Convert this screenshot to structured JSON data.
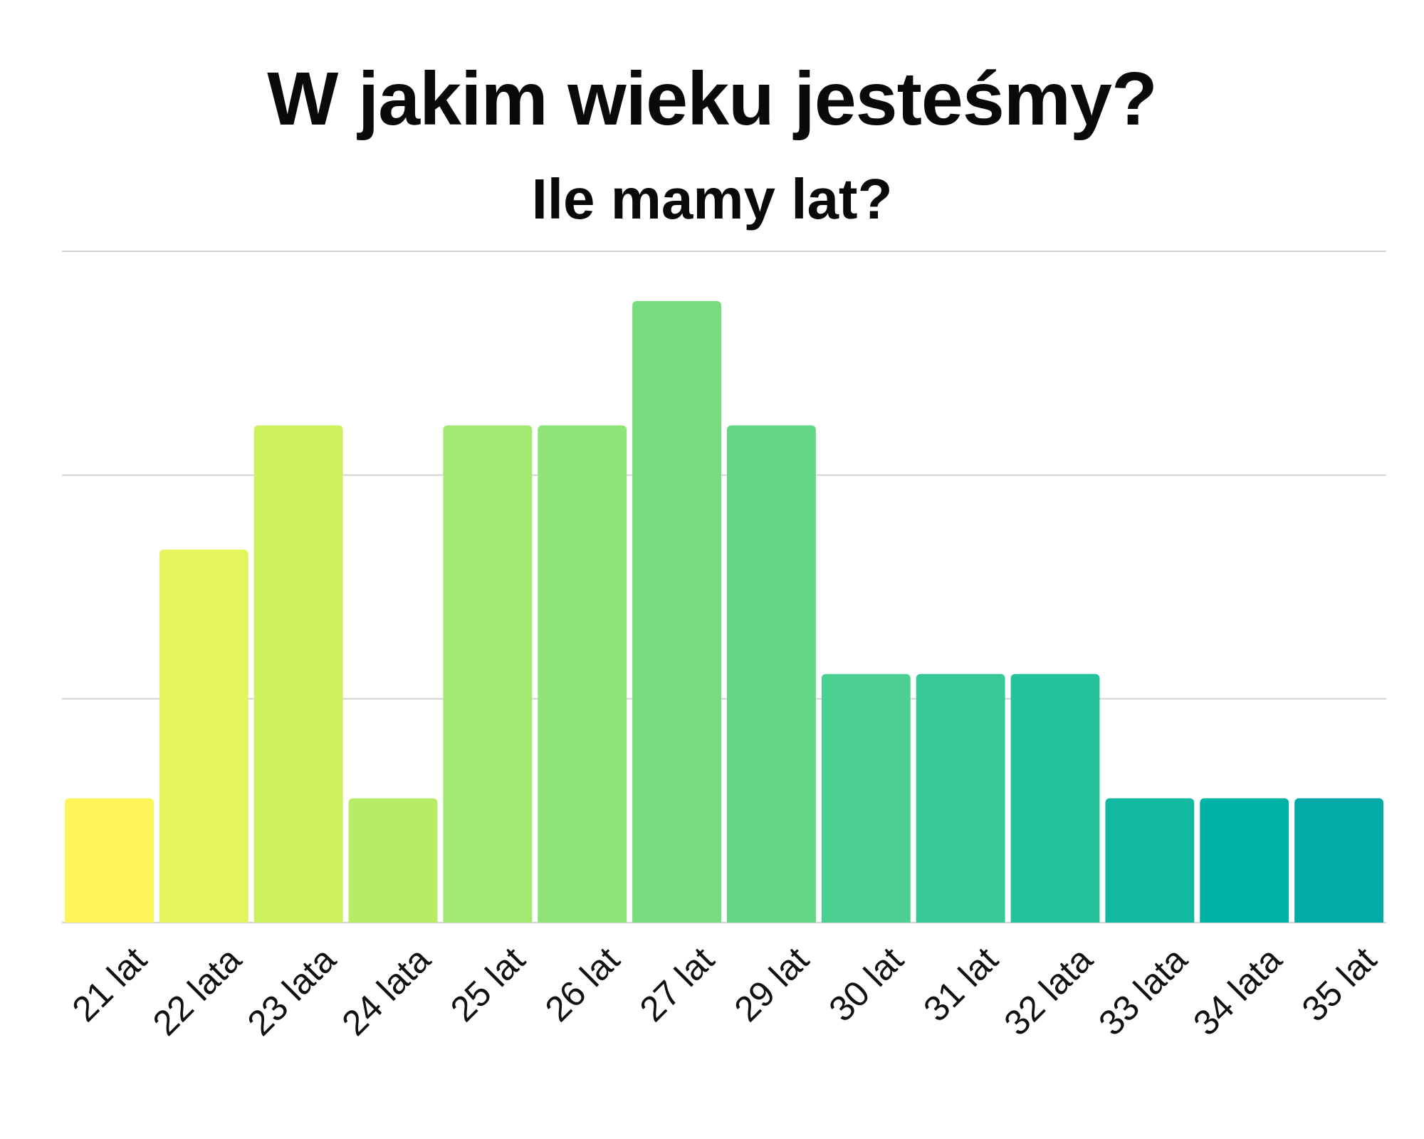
{
  "chart_data": {
    "type": "bar",
    "title": "W jakim wieku jesteśmy?",
    "subtitle": "Ile mamy lat?",
    "xlabel": "",
    "ylabel": "",
    "categories": [
      "21 lat",
      "22 lata",
      "23 lata",
      "24 lata",
      "25 lat",
      "26 lat",
      "27 lat",
      "29 lat",
      "30 lat",
      "31 lat",
      "32 lata",
      "33 lata",
      "34 lata",
      "35 lat"
    ],
    "values": [
      1,
      3,
      4,
      1,
      4,
      4,
      5,
      4,
      2,
      2,
      2,
      1,
      1,
      1
    ],
    "ylim": [
      0,
      5.4
    ],
    "gridlines": [
      1.8,
      3.6,
      5.4
    ],
    "grid": true,
    "legend": "none",
    "colors": [
      "#fff45a",
      "#e4f55c",
      "#cdf05d",
      "#b8ec66",
      "#a2e971",
      "#8ee478",
      "#77dc7e",
      "#63d787",
      "#4cd091",
      "#36c897",
      "#24c39b",
      "#13b8a1",
      "#00b3a6",
      "#04aaa8"
    ]
  }
}
